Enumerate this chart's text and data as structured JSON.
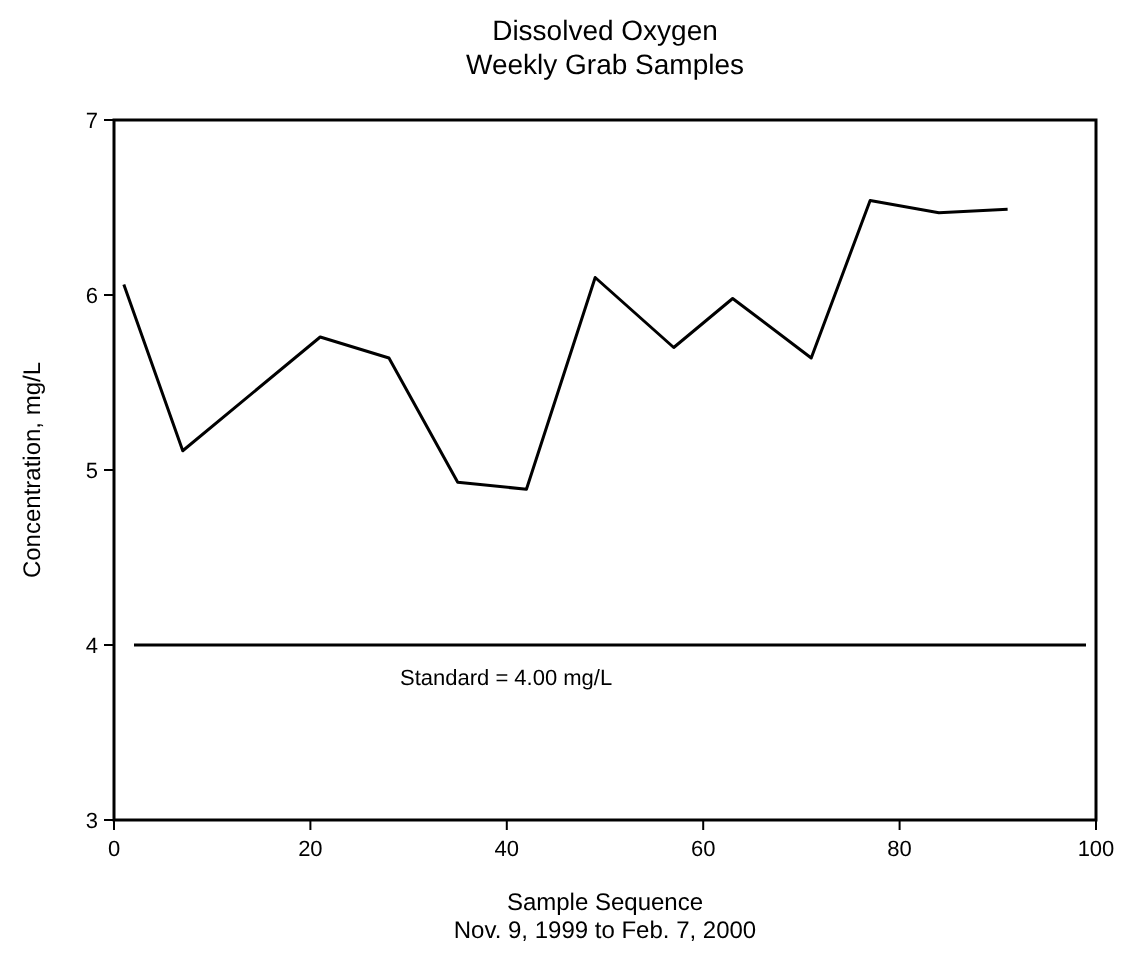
{
  "chart_data": {
    "type": "line",
    "title": "Dissolved Oxygen",
    "subtitle": "Weekly Grab Samples",
    "xlabel": "Sample Sequence\nNov. 9, 1999 to Feb. 7, 2000",
    "ylabel": "Concentration, mg/L",
    "x": [
      1,
      7,
      21,
      28,
      35,
      42,
      49,
      57,
      63,
      71,
      77,
      84,
      91
    ],
    "series": [
      {
        "color": "#000000",
        "values": [
          6.06,
          5.11,
          5.76,
          5.64,
          4.93,
          4.89,
          6.1,
          5.7,
          5.98,
          5.64,
          6.54,
          6.47,
          6.49
        ]
      }
    ],
    "xlim": [
      0,
      100
    ],
    "xticks": [
      0,
      20,
      40,
      60,
      80,
      100
    ],
    "ylim": [
      3,
      7
    ],
    "yticks": [
      3,
      4,
      5,
      6,
      7
    ],
    "grid": false,
    "marker": "none",
    "line_style": "solid",
    "ref_lines": [
      {
        "axis": "y",
        "value": 4,
        "label": "Standard = 4.00 mg/L",
        "color": "#000000"
      }
    ]
  }
}
